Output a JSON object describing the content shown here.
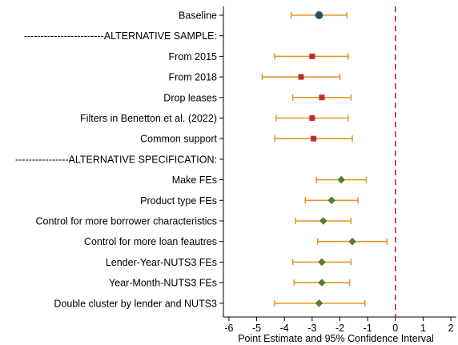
{
  "chart_data": {
    "type": "scatter",
    "title": "",
    "xlabel": "Point Estimate and 95% Confidence Interval",
    "ylabel": "",
    "xlim": [
      -6.2,
      2.2
    ],
    "xticks": [
      -6,
      -5,
      -4,
      -3,
      -2,
      -1,
      0,
      1,
      2
    ],
    "reference_line": 0,
    "reference_line_color": "#c8195a",
    "grid": false,
    "legend": "none",
    "rows": [
      {
        "label": "Baseline",
        "estimate": -2.75,
        "lower": -3.75,
        "upper": -1.75,
        "marker": "circle",
        "color": "#1f4f6b"
      },
      {
        "label": "------------------------ALTERNATIVE SAMPLE:",
        "estimate": null,
        "lower": null,
        "upper": null,
        "marker": "none",
        "color": null
      },
      {
        "label": "From 2015",
        "estimate": -3.0,
        "lower": -4.35,
        "upper": -1.7,
        "marker": "square",
        "color": "#b5332e"
      },
      {
        "label": "From 2018",
        "estimate": -3.4,
        "lower": -4.8,
        "upper": -2.0,
        "marker": "square",
        "color": "#b5332e"
      },
      {
        "label": "Drop leases",
        "estimate": -2.65,
        "lower": -3.7,
        "upper": -1.6,
        "marker": "square",
        "color": "#b5332e"
      },
      {
        "label": "Filters in Benetton et al. (2022)",
        "estimate": -3.0,
        "lower": -4.3,
        "upper": -1.7,
        "marker": "square",
        "color": "#b5332e"
      },
      {
        "label": "Common support",
        "estimate": -2.95,
        "lower": -4.35,
        "upper": -1.55,
        "marker": "square",
        "color": "#b5332e"
      },
      {
        "label": "----------------ALTERNATIVE SPECIFICATION:",
        "estimate": null,
        "lower": null,
        "upper": null,
        "marker": "none",
        "color": null
      },
      {
        "label": "Make FEs",
        "estimate": -1.95,
        "lower": -2.85,
        "upper": -1.05,
        "marker": "diamond",
        "color": "#5a7a2e"
      },
      {
        "label": "Product type FEs",
        "estimate": -2.3,
        "lower": -3.25,
        "upper": -1.35,
        "marker": "diamond",
        "color": "#5a7a2e"
      },
      {
        "label": "Control for more borrower characteristics",
        "estimate": -2.6,
        "lower": -3.6,
        "upper": -1.6,
        "marker": "diamond",
        "color": "#5a7a2e"
      },
      {
        "label": "Control for more loan feautres",
        "estimate": -1.55,
        "lower": -2.8,
        "upper": -0.3,
        "marker": "diamond",
        "color": "#5a7a2e"
      },
      {
        "label": "Lender-Year-NUTS3 FEs",
        "estimate": -2.65,
        "lower": -3.7,
        "upper": -1.6,
        "marker": "diamond",
        "color": "#5a7a2e"
      },
      {
        "label": "Year-Month-NUTS3 FEs",
        "estimate": -2.65,
        "lower": -3.65,
        "upper": -1.65,
        "marker": "diamond",
        "color": "#5a7a2e"
      },
      {
        "label": "Double cluster by lender and NUTS3",
        "estimate": -2.75,
        "lower": -4.35,
        "upper": -1.1,
        "marker": "diamond",
        "color": "#5a7a2e"
      }
    ],
    "ci_color": "#e8962a"
  }
}
